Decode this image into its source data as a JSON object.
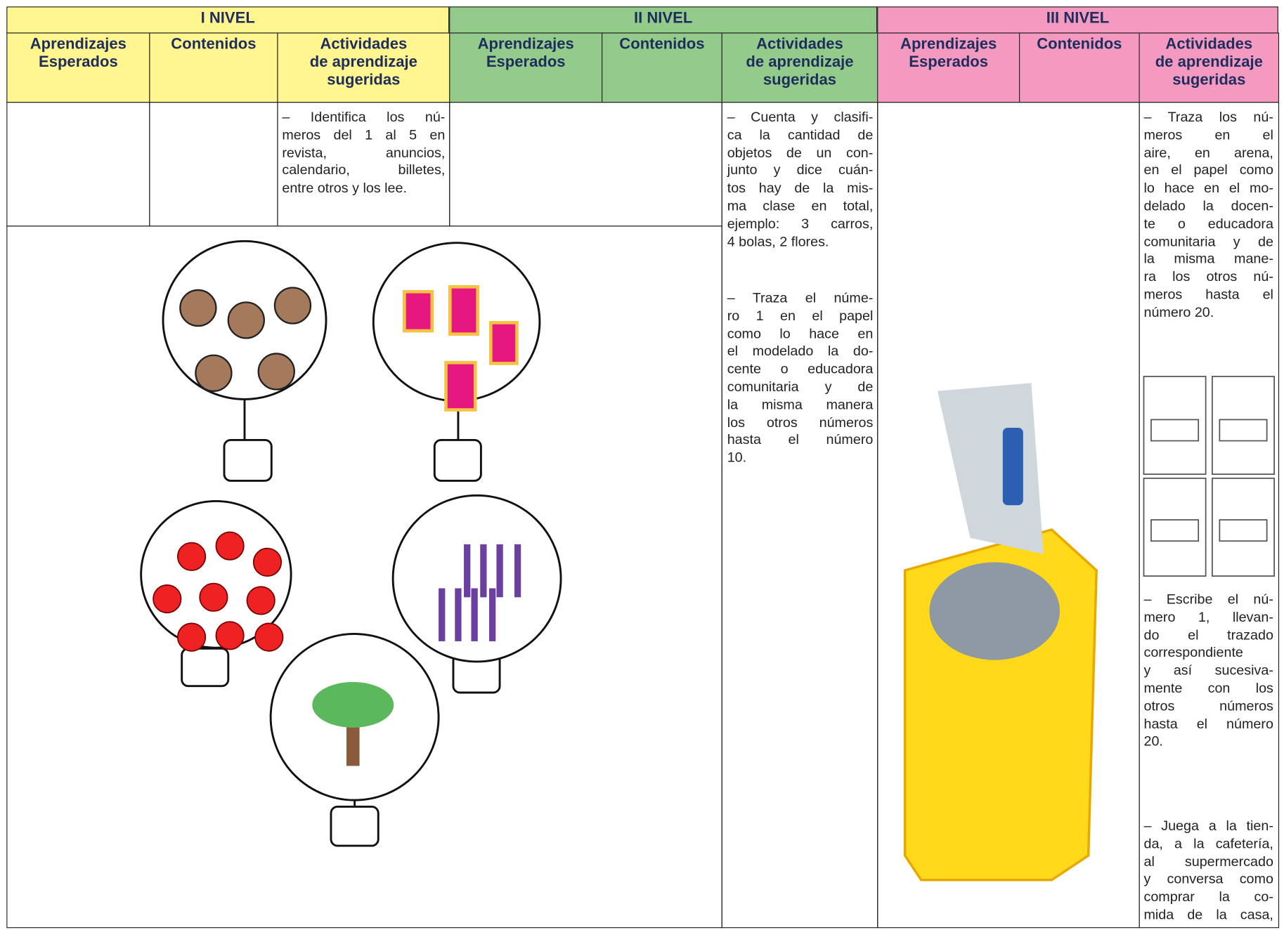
{
  "levels": [
    {
      "title": "I NIVEL",
      "color": "#fff68f",
      "columns": [
        [
          "Aprendizajes",
          "Esperados"
        ],
        [
          "Contenidos"
        ],
        [
          "Actividades",
          "de aprendizaje",
          "sugeridas"
        ]
      ],
      "activities": [
        [
          "– Identifica los nú-",
          "meros del 1 al 5 en",
          "revista, anuncios,",
          "calendario, billetes,",
          "entre otros y los lee."
        ]
      ]
    },
    {
      "title": "II NIVEL",
      "color": "#93cc8a",
      "columns": [
        [
          "Aprendizajes",
          "Esperados"
        ],
        [
          "Contenidos"
        ],
        [
          "Actividades",
          "de aprendizaje",
          "sugeridas"
        ]
      ],
      "activities": [
        [
          "– Cuenta y clasifi-",
          "ca la cantidad de",
          "objetos de un con-",
          "junto y dice cuán-",
          "tos hay de la mis-",
          "ma clase en total,",
          "ejemplo: 3 carros,",
          "4 bolas, 2 flores."
        ],
        [
          "– Traza el núme-",
          "ro 1 en el papel",
          "como lo hace en",
          "el modelado la do-",
          "cente o educadora",
          "comunitaria y de",
          "la misma manera",
          "los otros números",
          "hasta el número",
          "10."
        ]
      ]
    },
    {
      "title": "III NIVEL",
      "color": "#f49ac1",
      "columns": [
        [
          "Aprendizajes",
          "Esperados"
        ],
        [
          "Contenidos"
        ],
        [
          "Actividades",
          "de aprendizaje",
          "sugeridas"
        ]
      ],
      "activities": [
        [
          "– Traza los nú-",
          "meros en el",
          "aire, en arena,",
          "en el papel como",
          "lo hace en el mo-",
          "delado la docen-",
          "te o educadora",
          "comunitaria y de",
          "la misma mane-",
          "ra los otros nú-",
          "meros hasta el",
          "número 20."
        ],
        [
          "– Escribe el nú-",
          "mero 1, llevan-",
          "do el trazado",
          "correspondiente",
          "y así sucesiva-",
          "mente con los",
          "otros números",
          "hasta el número",
          "20."
        ],
        [
          "– Juega a la tien-",
          "da, a la cafetería,",
          "al supermercado",
          "y conversa como",
          "comprar la co-",
          "mida de la casa,"
        ]
      ]
    }
  ]
}
